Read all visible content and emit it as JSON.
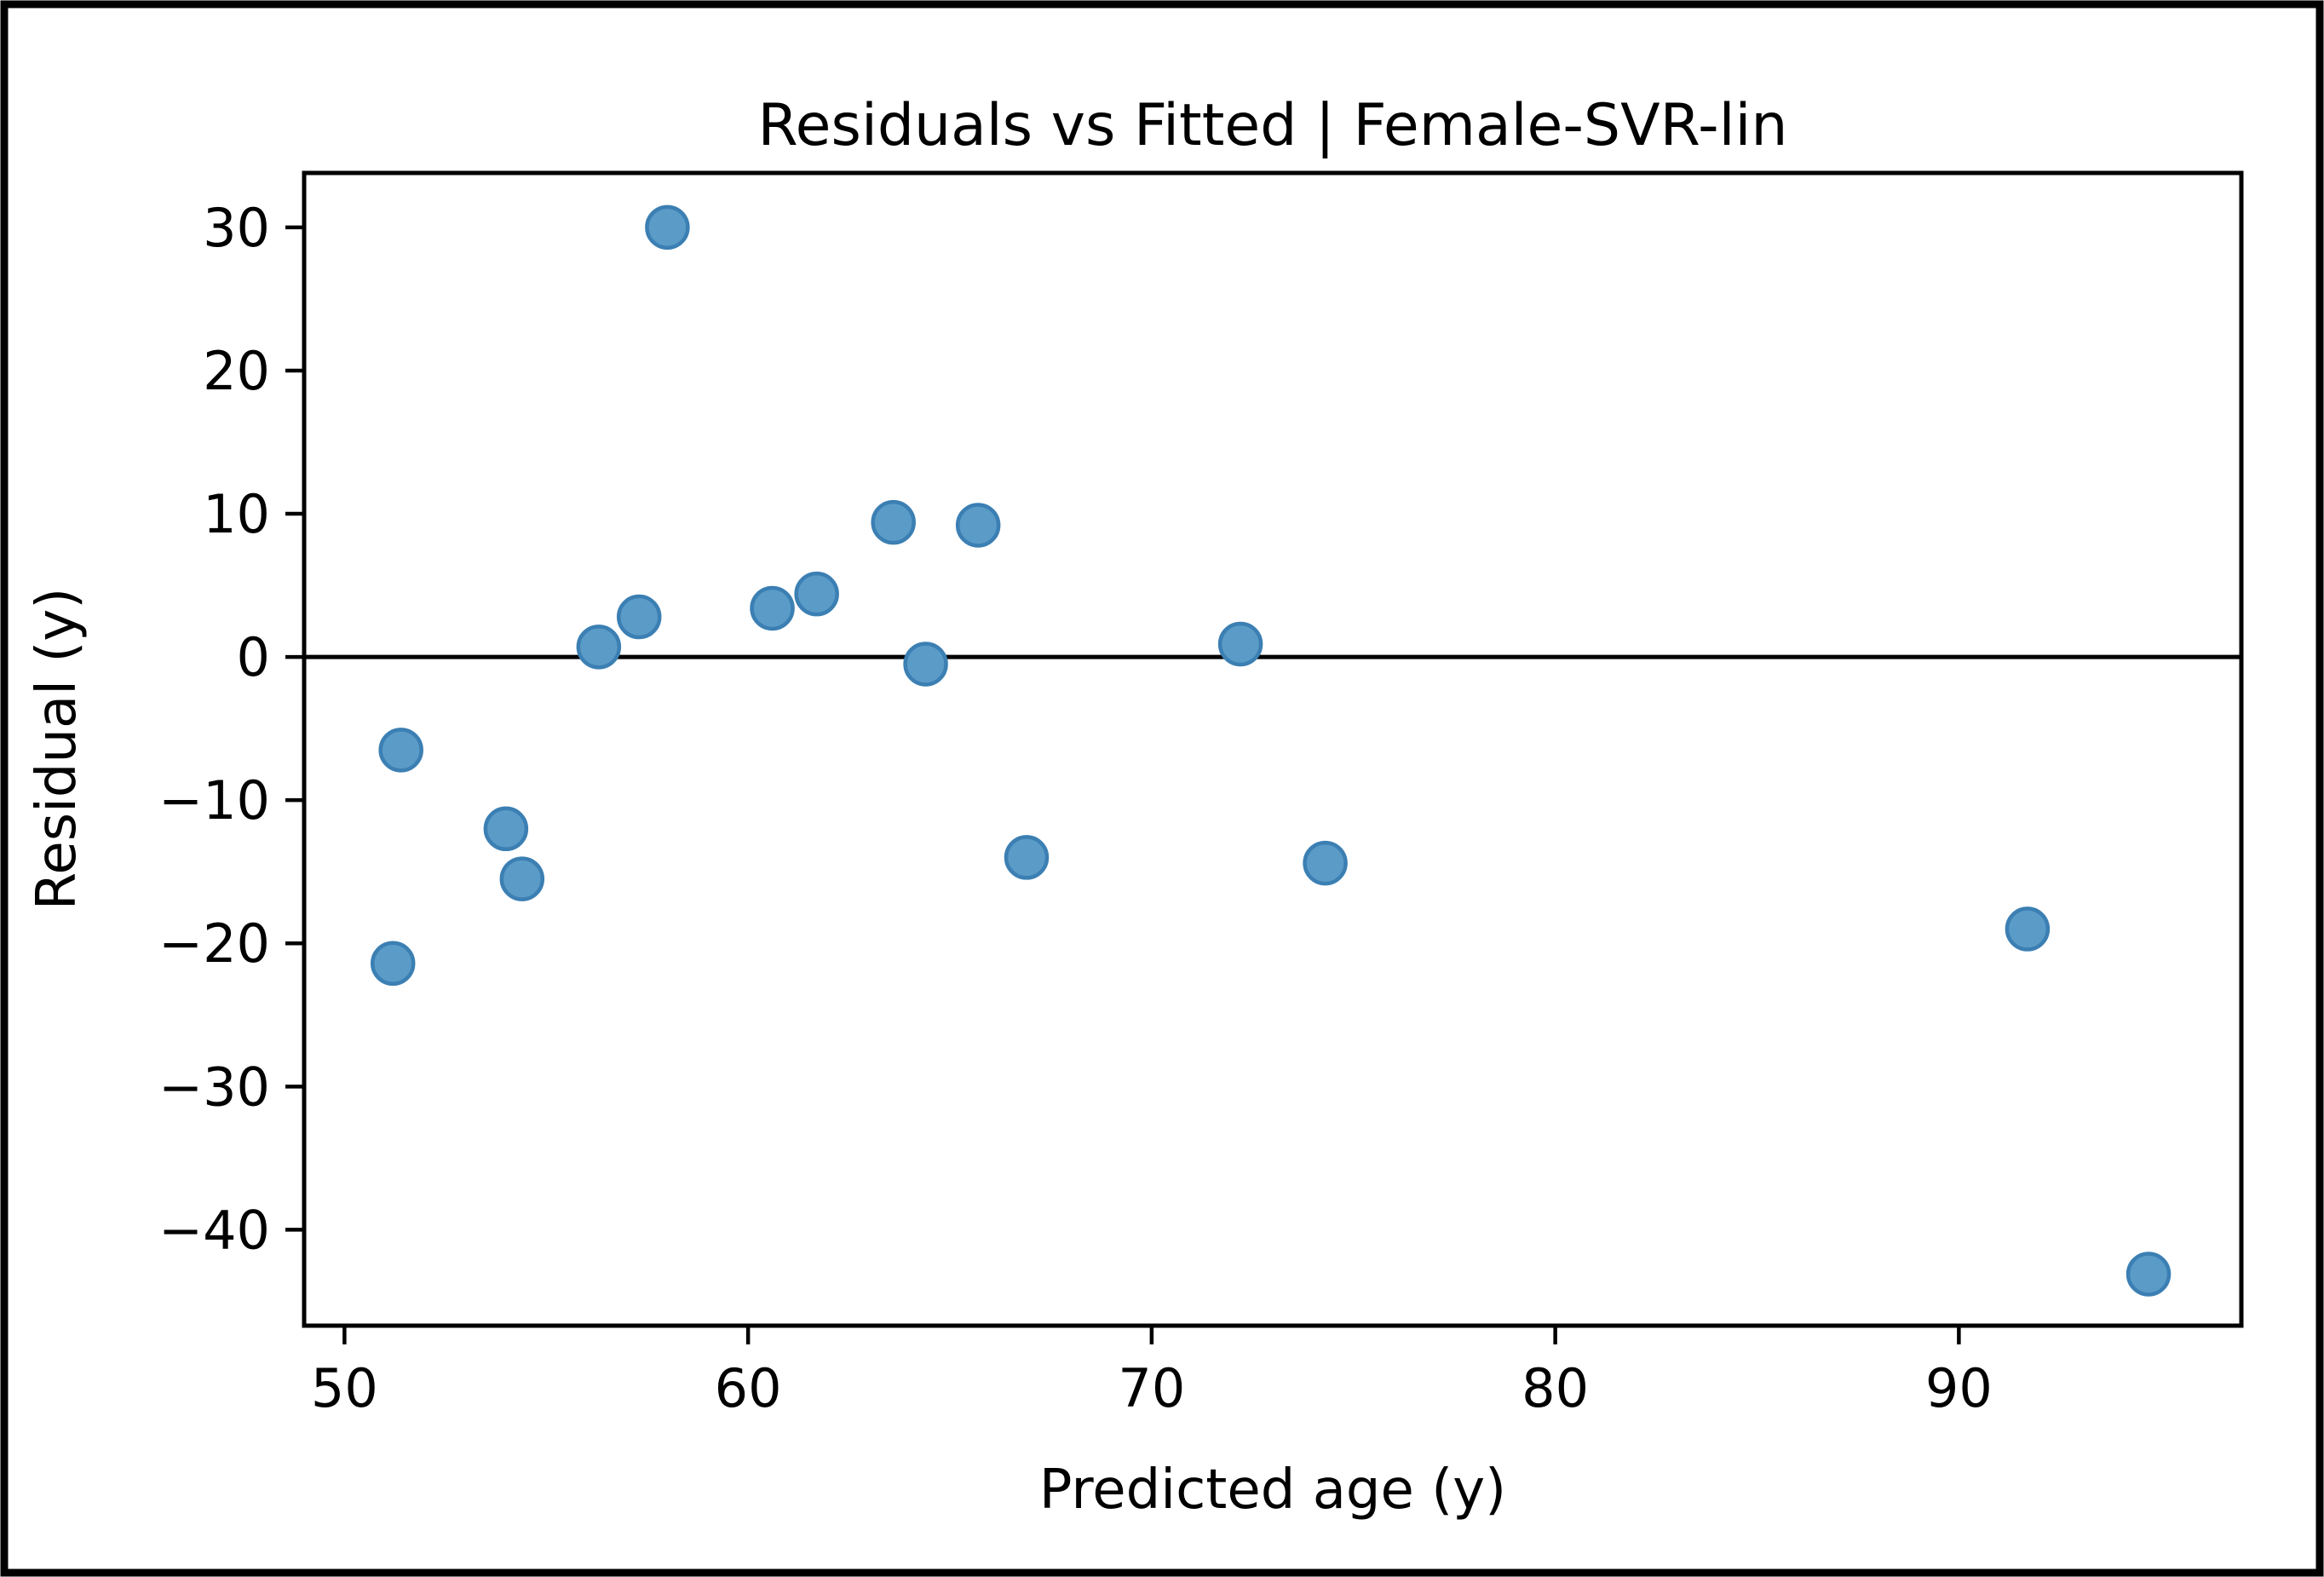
{
  "figure": {
    "background_color": "#ffffff",
    "frame_color": "#000000"
  },
  "chart_data": {
    "type": "scatter",
    "title": "Residuals vs Fitted | Female-SVR-lin",
    "xlabel": "Predicted age (y)",
    "ylabel": "Residual (y)",
    "xlim": [
      49.0,
      97.0
    ],
    "ylim": [
      -46.7,
      33.8
    ],
    "grid": false,
    "legend": "none",
    "reference_line_y": 0,
    "marker_color": "#5b9bc8",
    "marker_edge_color": "#3b7fb3",
    "x_ticks": [
      {
        "value": 50,
        "label": "50"
      },
      {
        "value": 60,
        "label": "60"
      },
      {
        "value": 70,
        "label": "70"
      },
      {
        "value": 80,
        "label": "80"
      },
      {
        "value": 90,
        "label": "90"
      }
    ],
    "y_ticks": [
      {
        "value": 30,
        "label": "30"
      },
      {
        "value": 20,
        "label": "20"
      },
      {
        "value": 10,
        "label": "10"
      },
      {
        "value": 0,
        "label": "0"
      },
      {
        "value": -10,
        "label": "−10"
      },
      {
        "value": -20,
        "label": "−20"
      },
      {
        "value": -30,
        "label": "−30"
      },
      {
        "value": -40,
        "label": "−40"
      }
    ],
    "points": [
      [
        51.2,
        -21.4
      ],
      [
        51.4,
        -6.5
      ],
      [
        54.0,
        -12.0
      ],
      [
        54.4,
        -15.5
      ],
      [
        56.3,
        0.7
      ],
      [
        57.3,
        2.8
      ],
      [
        58.0,
        30.0
      ],
      [
        60.6,
        3.4
      ],
      [
        61.7,
        4.4
      ],
      [
        63.6,
        9.4
      ],
      [
        64.4,
        -0.5
      ],
      [
        65.7,
        9.2
      ],
      [
        66.9,
        -14.0
      ],
      [
        72.2,
        0.9
      ],
      [
        74.3,
        -14.4
      ],
      [
        91.7,
        -19.0
      ],
      [
        94.7,
        -43.1
      ]
    ]
  }
}
